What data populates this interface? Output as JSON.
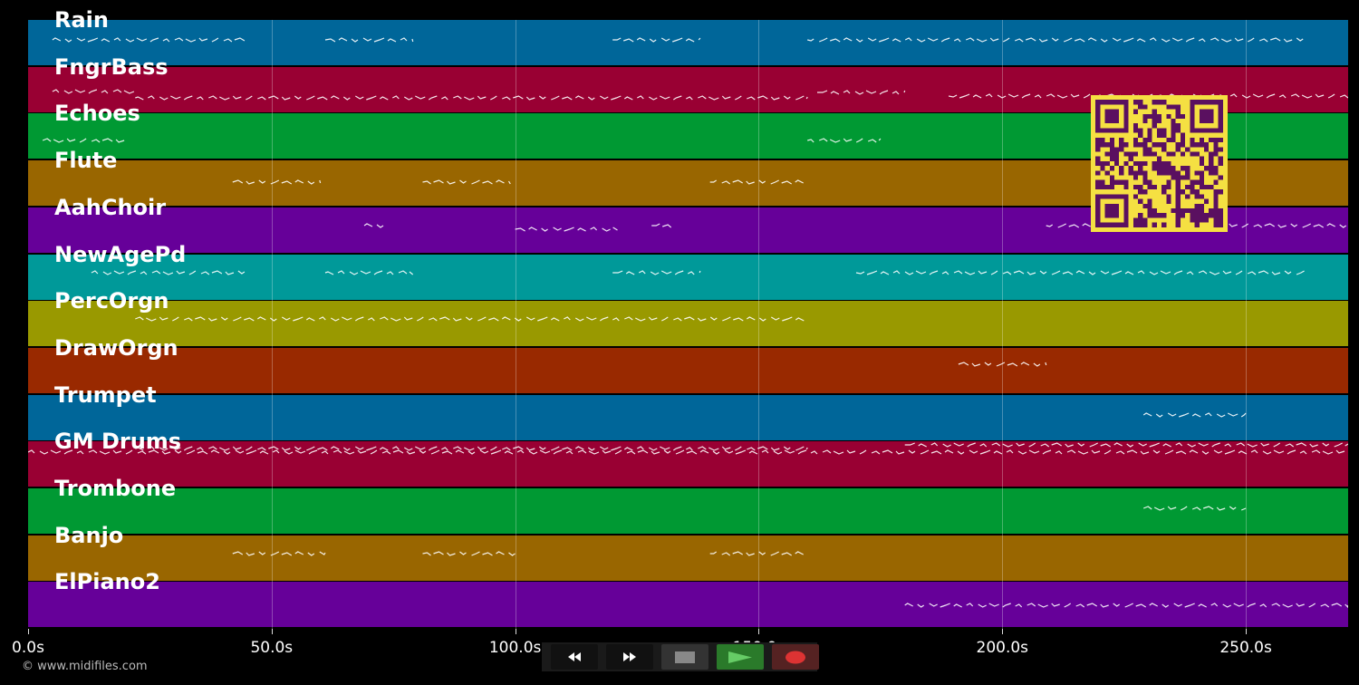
{
  "tracks": [
    {
      "name": "Rain",
      "color": "#006699"
    },
    {
      "name": "FngrBass",
      "color": "#990033"
    },
    {
      "name": "Echoes",
      "color": "#009933"
    },
    {
      "name": "Flute",
      "color": "#996600"
    },
    {
      "name": "AahChoir",
      "color": "#660099"
    },
    {
      "name": "NewAgePd",
      "color": "#009999"
    },
    {
      "name": "PercOrgn",
      "color": "#999900"
    },
    {
      "name": "DrawOrgn",
      "color": "#992900"
    },
    {
      "name": "Trumpet",
      "color": "#006699"
    },
    {
      "name": "GM Drums",
      "color": "#990033"
    },
    {
      "name": "Trombone",
      "color": "#009933"
    },
    {
      "name": "Banjo",
      "color": "#996600"
    },
    {
      "name": "ElPiano2",
      "color": "#660099"
    }
  ],
  "timeline": {
    "max_seconds": 271,
    "ticks": [
      {
        "value": 0,
        "label": "0.0s"
      },
      {
        "value": 50,
        "label": "50.0s"
      },
      {
        "value": 100,
        "label": "100.0s"
      },
      {
        "value": 150,
        "label": "150.0s"
      },
      {
        "value": 200,
        "label": "200.0s"
      },
      {
        "value": 250,
        "label": "250.0s"
      }
    ]
  },
  "controls": [
    {
      "id": "rewind",
      "icon": "rewind-icon",
      "bg": "#111111",
      "fg": "#ffffff"
    },
    {
      "id": "fast-forward",
      "icon": "fast-forward-icon",
      "bg": "#111111",
      "fg": "#ffffff"
    },
    {
      "id": "stop",
      "icon": "stop-icon",
      "bg": "#333333",
      "fg": "#888888"
    },
    {
      "id": "play",
      "icon": "play-icon",
      "bg": "#2a7a2a",
      "fg": "#66cc66"
    },
    {
      "id": "record",
      "icon": "record-icon",
      "bg": "#552222",
      "fg": "#dd3333"
    }
  ],
  "copyright": "© www.midifiles.com",
  "qr": {
    "fg": "#5a1060",
    "bg": "#f5e042"
  }
}
